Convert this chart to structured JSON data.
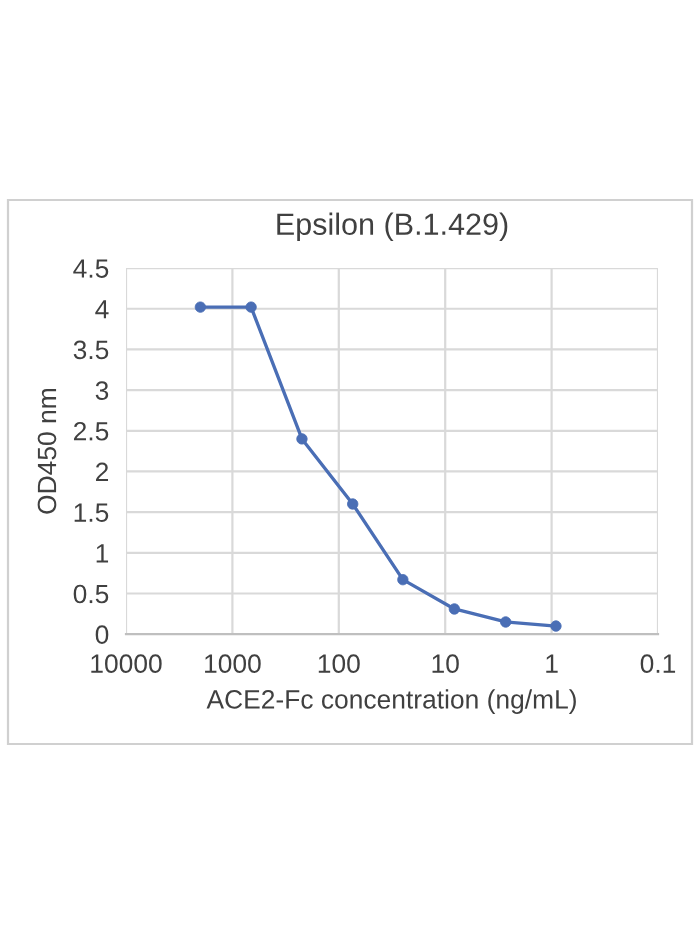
{
  "chart_data": {
    "type": "line",
    "title": "Epsilon (B.1.429)",
    "xlabel": "ACE2-Fc concentration (ng/mL)",
    "ylabel": "OD450 nm",
    "log": "x",
    "marker": "circle",
    "grid": true,
    "legend": false,
    "xlim": [
      10000,
      0.1
    ],
    "xticks": [
      10000,
      1000,
      100,
      10,
      1,
      0.1
    ],
    "ylim": [
      0,
      4.5
    ],
    "yticks": [
      0,
      0.5,
      1,
      1.5,
      2,
      2.5,
      3,
      3.5,
      4,
      4.5
    ],
    "series": [
      {
        "color": "#4a6eb5",
        "x": [
          2000,
          667,
          222,
          74,
          25,
          8.2,
          2.7,
          0.91
        ],
        "values": [
          4.02,
          4.02,
          2.4,
          1.6,
          0.67,
          0.31,
          0.15,
          0.1
        ]
      }
    ]
  }
}
